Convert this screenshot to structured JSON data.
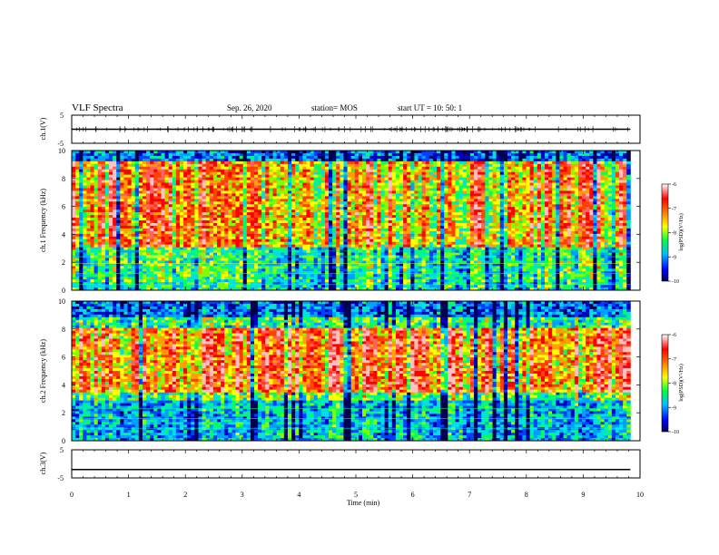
{
  "header": {
    "title": "VLF Spectra",
    "date": "Sep. 26, 2020",
    "station": "station= MOS",
    "start": "start  UT =   10: 50: 1"
  },
  "chart_data": [
    {
      "type": "line",
      "name": "ch1-waveform",
      "ylabel": "ch.1(V)",
      "ylim": [
        -5,
        5
      ],
      "yticks": [
        "5",
        "-5"
      ],
      "xlim": [
        0,
        10
      ],
      "x": [
        0,
        9.83
      ],
      "y": [
        0,
        0
      ]
    },
    {
      "type": "heatmap",
      "name": "ch1-spectrogram",
      "ylabel": "ch.1 Frequency (kHz)",
      "ylim": [
        0,
        10
      ],
      "yticks": [
        "0",
        "2",
        "4",
        "6",
        "8",
        "10"
      ],
      "xlim": [
        0,
        10
      ],
      "x_data_end": 9.83,
      "band_peak_khz": [
        1,
        9
      ]
    },
    {
      "type": "heatmap",
      "name": "ch2-spectrogram",
      "ylabel": "ch.2 Frequency (kHz)",
      "ylim": [
        0,
        10
      ],
      "yticks": [
        "0",
        "2",
        "4",
        "6",
        "8",
        "10"
      ],
      "xlim": [
        0,
        10
      ],
      "x_data_end": 9.83,
      "band_peak_khz": [
        3.5,
        8
      ]
    },
    {
      "type": "line",
      "name": "ch3-waveform",
      "ylabel": "ch.3(V)",
      "ylim": [
        -5,
        5
      ],
      "yticks": [
        "5",
        "-5"
      ],
      "xlim": [
        0,
        10
      ],
      "xlabel": "Time  (min)",
      "xticks": [
        "0",
        "1",
        "2",
        "3",
        "4",
        "5",
        "6",
        "7",
        "8",
        "9",
        "10"
      ],
      "x": [
        0,
        9.83
      ],
      "y": [
        -2,
        -2
      ]
    }
  ],
  "colorbar": {
    "label": "log(PSD)(V²/Hz)",
    "ticks": [
      "-6",
      "-7",
      "-8",
      "-9",
      "-10"
    ],
    "range": [
      -10,
      -6
    ],
    "colors": [
      "#000080",
      "#0000ff",
      "#00c0ff",
      "#00ff00",
      "#ffff00",
      "#ff8000",
      "#ff0000",
      "#ffffff"
    ]
  }
}
